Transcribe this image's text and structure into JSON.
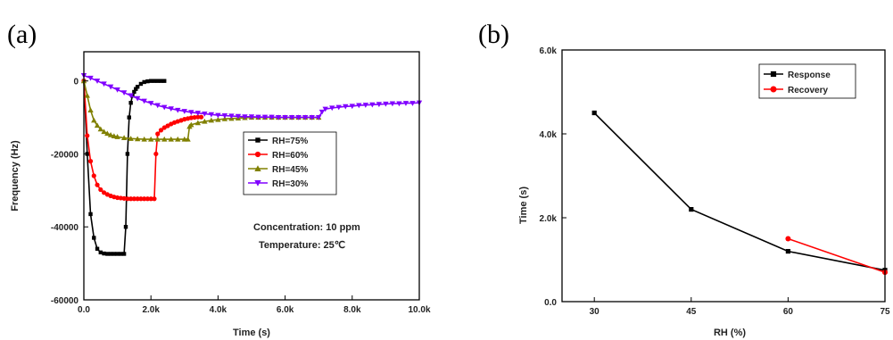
{
  "chart_data": [
    {
      "panel": "(a)",
      "type": "line",
      "xlabel": "Time (s)",
      "ylabel": "Frequency (Hz)",
      "xlim": [
        0,
        10000
      ],
      "ylim": [
        -60000,
        8000
      ],
      "xticks": [
        0,
        2000,
        4000,
        6000,
        8000,
        10000
      ],
      "xtick_labels": [
        "0.0",
        "2.0k",
        "4.0k",
        "6.0k",
        "8.0k",
        "10.0k"
      ],
      "yticks": [
        0,
        -20000,
        -40000,
        -60000
      ],
      "ytick_labels": [
        "0",
        "-20000",
        "-40000",
        "-60000"
      ],
      "grid": false,
      "legend_position": "center-right",
      "annotations": [
        "Concentration: 10 ppm",
        "Temperature: 25℃"
      ],
      "series": [
        {
          "name": "RH=75%",
          "color": "#000000",
          "marker": "square",
          "x": [
            0,
            100,
            200,
            300,
            400,
            500,
            600,
            700,
            800,
            900,
            1000,
            1100,
            1200,
            1250,
            1300,
            1350,
            1400,
            1450,
            1500,
            1550,
            1600,
            1700,
            1800,
            1900,
            2000,
            2100,
            2200,
            2300,
            2400
          ],
          "y": [
            0,
            -20000,
            -36500,
            -43000,
            -46000,
            -47000,
            -47300,
            -47400,
            -47400,
            -47400,
            -47400,
            -47400,
            -47400,
            -40000,
            -20000,
            -10000,
            -6000,
            -4000,
            -3000,
            -2200,
            -1600,
            -800,
            -300,
            -100,
            0,
            0,
            0,
            0,
            0
          ]
        },
        {
          "name": "RH=60%",
          "color": "#ff0000",
          "marker": "circle",
          "x": [
            0,
            100,
            200,
            300,
            400,
            500,
            600,
            700,
            800,
            900,
            1000,
            1100,
            1200,
            1300,
            1400,
            1500,
            1600,
            1700,
            1800,
            1900,
            2000,
            2100,
            2150,
            2200,
            2300,
            2400,
            2500,
            2600,
            2700,
            2800,
            2900,
            3000,
            3100,
            3200,
            3300,
            3400,
            3500
          ],
          "y": [
            0,
            -15000,
            -22000,
            -26000,
            -28500,
            -29800,
            -30600,
            -31100,
            -31500,
            -31800,
            -32000,
            -32100,
            -32200,
            -32300,
            -32300,
            -32300,
            -32300,
            -32300,
            -32300,
            -32300,
            -32300,
            -32300,
            -20000,
            -14500,
            -13500,
            -12800,
            -12300,
            -11800,
            -11400,
            -11100,
            -10800,
            -10500,
            -10300,
            -10100,
            -10000,
            -9900,
            -9900
          ]
        },
        {
          "name": "RH=45%",
          "color": "#808000",
          "marker": "triangle-up",
          "x": [
            0,
            100,
            200,
            300,
            400,
            500,
            600,
            700,
            800,
            900,
            1000,
            1200,
            1400,
            1600,
            1800,
            2000,
            2200,
            2400,
            2600,
            2800,
            3000,
            3100,
            3150,
            3200,
            3400,
            3600,
            3800,
            4000,
            4200,
            4400,
            4600,
            4800,
            5000,
            5200,
            5400,
            5600,
            5800,
            6000,
            6200,
            6400,
            6600,
            6800,
            7000
          ],
          "y": [
            0,
            -4000,
            -8000,
            -10800,
            -12200,
            -13200,
            -13900,
            -14400,
            -14800,
            -15100,
            -15300,
            -15600,
            -15800,
            -15900,
            -16000,
            -16000,
            -16000,
            -16000,
            -16000,
            -16000,
            -16000,
            -16000,
            -12500,
            -12000,
            -11500,
            -11100,
            -10800,
            -10600,
            -10400,
            -10300,
            -10200,
            -10100,
            -10000,
            -10000,
            -10000,
            -10000,
            -10000,
            -10000,
            -10000,
            -10000,
            -10000,
            -10000,
            -10000
          ]
        },
        {
          "name": "RH=30%",
          "color": "#8000ff",
          "marker": "triangle-down",
          "x": [
            0,
            200,
            400,
            600,
            800,
            1000,
            1200,
            1400,
            1600,
            1800,
            2000,
            2200,
            2400,
            2600,
            2800,
            3000,
            3200,
            3400,
            3600,
            3800,
            4000,
            4200,
            4400,
            4600,
            4800,
            5000,
            5200,
            5400,
            5600,
            5800,
            6000,
            6200,
            6400,
            6600,
            6800,
            7000,
            7100,
            7200,
            7400,
            7600,
            7800,
            8000,
            8200,
            8400,
            8600,
            8800,
            9000,
            9200,
            9400,
            9600,
            9800,
            10000
          ],
          "y": [
            1500,
            800,
            0,
            -800,
            -1600,
            -2400,
            -3200,
            -4000,
            -4800,
            -5500,
            -6100,
            -6700,
            -7200,
            -7600,
            -8000,
            -8300,
            -8600,
            -8800,
            -9000,
            -9200,
            -9400,
            -9500,
            -9600,
            -9700,
            -9800,
            -9800,
            -9900,
            -9900,
            -9900,
            -10000,
            -10000,
            -10000,
            -10000,
            -10000,
            -10000,
            -10000,
            -8500,
            -7700,
            -7400,
            -7200,
            -7000,
            -6900,
            -6700,
            -6600,
            -6500,
            -6400,
            -6300,
            -6200,
            -6200,
            -6100,
            -6100,
            -6000
          ]
        }
      ]
    },
    {
      "panel": "(b)",
      "type": "line",
      "xlabel": "RH (%)",
      "ylabel": "Time (s)",
      "xlim": [
        25,
        75
      ],
      "ylim": [
        0,
        6000
      ],
      "xticks": [
        30,
        45,
        60,
        75
      ],
      "xtick_labels": [
        "30",
        "45",
        "60",
        "75"
      ],
      "yticks": [
        0,
        2000,
        4000,
        6000
      ],
      "ytick_labels": [
        "0.0",
        "2.0k",
        "4.0k",
        "6.0k"
      ],
      "grid": false,
      "legend_position": "top-right",
      "series": [
        {
          "name": "Response",
          "color": "#000000",
          "marker": "square",
          "x": [
            30,
            45,
            60,
            75
          ],
          "y": [
            4500,
            2200,
            1200,
            750
          ]
        },
        {
          "name": "Recovery",
          "color": "#ff0000",
          "marker": "circle",
          "x": [
            60,
            75
          ],
          "y": [
            1500,
            700
          ]
        }
      ]
    }
  ]
}
